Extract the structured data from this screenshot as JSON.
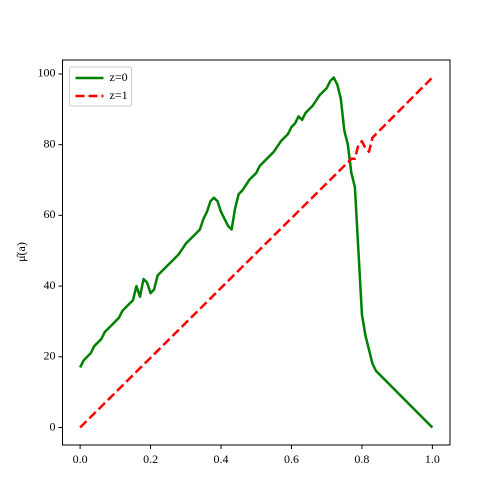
{
  "chart_data": {
    "type": "line",
    "ylabel": "μ̂(a)",
    "legend": "upper left",
    "xlim": [
      -0.05,
      1.05
    ],
    "ylim": [
      -4.95,
      103.95
    ],
    "xticks": [
      {
        "value": 0,
        "label": "0.0"
      },
      0.2,
      0.4,
      0.6,
      0.8,
      {
        "value": 1,
        "label": "1.0"
      }
    ],
    "yticks": [
      0,
      20,
      40,
      60,
      80,
      100
    ],
    "series": [
      {
        "name": "z=0",
        "color": "#008000",
        "dash": "solid",
        "x": [
          0,
          0.01,
          0.02,
          0.03,
          0.04,
          0.05,
          0.06,
          0.07,
          0.08,
          0.09,
          0.1,
          0.11,
          0.12,
          0.13,
          0.14,
          0.15,
          0.16,
          0.17,
          0.18,
          0.19,
          0.2,
          0.21,
          0.22,
          0.24,
          0.26,
          0.28,
          0.3,
          0.32,
          0.34,
          0.35,
          0.36,
          0.37,
          0.38,
          0.39,
          0.4,
          0.41,
          0.42,
          0.43,
          0.44,
          0.45,
          0.46,
          0.48,
          0.5,
          0.51,
          0.53,
          0.55,
          0.57,
          0.59,
          0.6,
          0.61,
          0.62,
          0.63,
          0.64,
          0.66,
          0.68,
          0.7,
          0.71,
          0.72,
          0.73,
          0.74,
          0.75,
          0.76,
          0.77,
          0.78,
          0.79,
          0.8,
          0.81,
          0.82,
          0.83,
          0.84,
          1.0
        ],
        "values": [
          17,
          19,
          20,
          21,
          23,
          24,
          25,
          27,
          28,
          29,
          30,
          31,
          33,
          34,
          35,
          36,
          40,
          37,
          42,
          41,
          38,
          39,
          43,
          45,
          47,
          49,
          52,
          54,
          56,
          59,
          61,
          64,
          65,
          64,
          61,
          59,
          57,
          56,
          62,
          66,
          67,
          70,
          72,
          74,
          76,
          78,
          81,
          83,
          85,
          86,
          88,
          87,
          89,
          91,
          94,
          96,
          98,
          99,
          97,
          93,
          84,
          80,
          72,
          68,
          50,
          32,
          26,
          22,
          18,
          16,
          0
        ]
      },
      {
        "name": "z=1",
        "color": "#ff0000",
        "dash": "dashed",
        "x": [
          0,
          0.76,
          0.77,
          0.78,
          0.79,
          0.8,
          0.81,
          0.82,
          0.83,
          0.84,
          1.0
        ],
        "values": [
          0,
          75,
          76,
          76,
          80,
          81,
          79,
          78,
          82,
          83,
          99
        ]
      }
    ]
  }
}
